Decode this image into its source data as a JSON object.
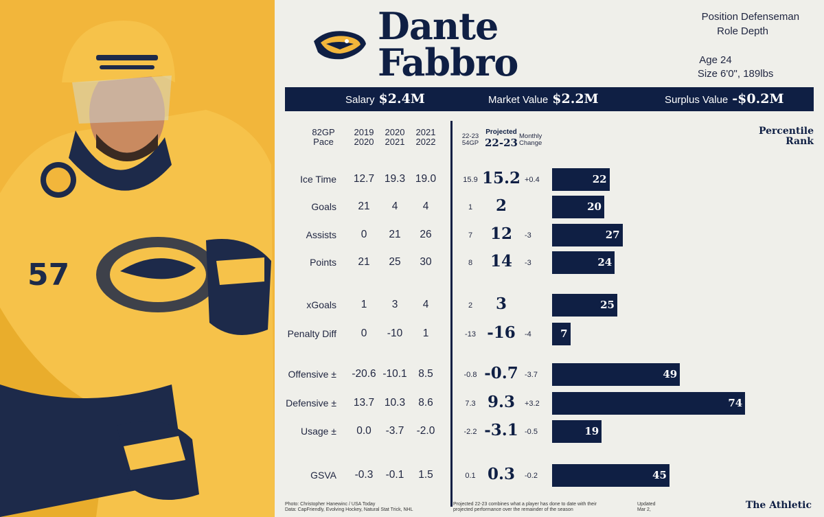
{
  "player": {
    "first_name": "Dante",
    "last_name": "Fabbro",
    "position_label": "Position",
    "position": "Defenseman",
    "role_label": "Role",
    "role": "Depth",
    "age_label": "Age",
    "age": "24",
    "size_label": "Size",
    "size": "6'0\", 189lbs",
    "jersey_number": "57"
  },
  "contract": {
    "salary_label": "Salary",
    "salary": "$2.4M",
    "market_label": "Market Value",
    "market": "$2.2M",
    "surplus_label": "Surplus Value",
    "surplus": "-$0.2M"
  },
  "headers": {
    "pace_l1": "82GP",
    "pace_l2": "Pace",
    "s1_l1": "2019",
    "s1_l2": "2020",
    "s2_l1": "2020",
    "s2_l2": "2021",
    "s3_l1": "2021",
    "s3_l2": "2022",
    "cur_l1": "22-23",
    "cur_l2": "54GP",
    "proj_l1": "Projected",
    "proj_l2": "22-23",
    "chg_l1": "Monthly",
    "chg_l2": "Change",
    "pct_l1": "Percentile",
    "pct_l2": "Rank"
  },
  "colors": {
    "navy": "#0f1f44",
    "gold": "#f2b63b",
    "background": "#efefea"
  },
  "chart_data": {
    "type": "bar",
    "categories": [
      "Ice Time",
      "Goals",
      "Assists",
      "Points",
      "xGoals",
      "Penalty Diff",
      "Offensive ±",
      "Defensive ±",
      "Usage ±",
      "GSVA"
    ],
    "series": [
      {
        "values": [
          22,
          20,
          27,
          24,
          25,
          7,
          49,
          74,
          19,
          45
        ]
      }
    ],
    "xlim": [
      0,
      100
    ]
  },
  "rows": [
    {
      "label": "Ice Time",
      "s1": "12.7",
      "s2": "19.3",
      "s3": "19.0",
      "cur": "15.9",
      "proj": "15.2",
      "chg": "+0.4",
      "pct": "22"
    },
    {
      "label": "Goals",
      "s1": "21",
      "s2": "4",
      "s3": "4",
      "cur": "1",
      "proj": "2",
      "chg": "",
      "pct": "20"
    },
    {
      "label": "Assists",
      "s1": "0",
      "s2": "21",
      "s3": "26",
      "cur": "7",
      "proj": "12",
      "chg": "-3",
      "pct": "27"
    },
    {
      "label": "Points",
      "s1": "21",
      "s2": "25",
      "s3": "30",
      "cur": "8",
      "proj": "14",
      "chg": "-3",
      "pct": "24"
    },
    {
      "label": "xGoals",
      "s1": "1",
      "s2": "3",
      "s3": "4",
      "cur": "2",
      "proj": "3",
      "chg": "",
      "pct": "25"
    },
    {
      "label": "Penalty Diff",
      "s1": "0",
      "s2": "-10",
      "s3": "1",
      "cur": "-13",
      "proj": "-16",
      "chg": "-4",
      "pct": "7"
    },
    {
      "label": "Offensive ±",
      "s1": "-20.6",
      "s2": "-10.1",
      "s3": "8.5",
      "cur": "-0.8",
      "proj": "-0.7",
      "chg": "-3.7",
      "pct": "49"
    },
    {
      "label": "Defensive ±",
      "s1": "13.7",
      "s2": "10.3",
      "s3": "8.6",
      "cur": "7.3",
      "proj": "9.3",
      "chg": "+3.2",
      "pct": "74"
    },
    {
      "label": "Usage ±",
      "s1": "0.0",
      "s2": "-3.7",
      "s3": "-2.0",
      "cur": "-2.2",
      "proj": "-3.1",
      "chg": "-0.5",
      "pct": "19"
    },
    {
      "label": "GSVA",
      "s1": "-0.3",
      "s2": "-0.1",
      "s3": "1.5",
      "cur": "0.1",
      "proj": "0.3",
      "chg": "-0.2",
      "pct": "45"
    }
  ],
  "footer": {
    "photo_credit": "Photo: Christopher Hanewinc / USA Today",
    "data_credit": "Data: CapFriendly, Evolving Hockey, Natural Stat Trick, NHL",
    "note_l1": "Projected 22-23 combines what a player has done to date with their",
    "note_l2": "projected performance over the remainder of the season",
    "updated_label": "Updated",
    "updated_date": "Mar 2,",
    "brand": "The Athletic"
  }
}
